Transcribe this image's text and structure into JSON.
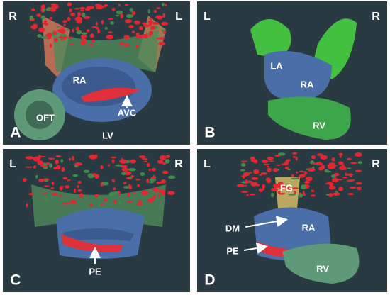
{
  "panels": [
    {
      "letter": "A",
      "orientation": [
        "R",
        "L"
      ],
      "labels": [
        "RA",
        "AVC",
        "OFT",
        "LV"
      ]
    },
    {
      "letter": "B",
      "orientation": [
        "L",
        "R"
      ],
      "labels": [
        "LA",
        "RA",
        "RV"
      ]
    },
    {
      "letter": "C",
      "orientation": [
        "L",
        "R"
      ],
      "labels": [
        "PE"
      ]
    },
    {
      "letter": "D",
      "orientation": [
        "L",
        "R"
      ],
      "labels": [
        "FG",
        "DM",
        "RA",
        "PE",
        "RV"
      ]
    }
  ]
}
